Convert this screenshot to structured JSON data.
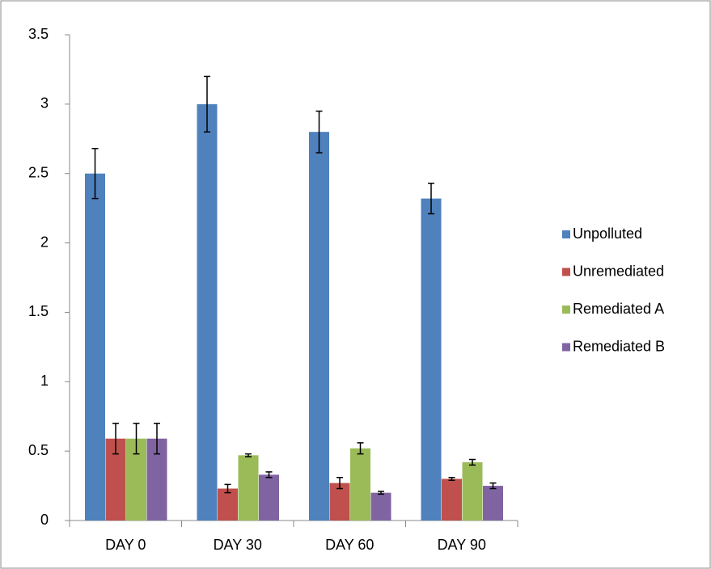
{
  "chart_data": {
    "type": "bar",
    "categories": [
      "DAY 0",
      "DAY 30",
      "DAY 60",
      "DAY 90"
    ],
    "series": [
      {
        "name": "Unpolluted",
        "color": "#4f81bd",
        "values": [
          2.5,
          3.0,
          2.8,
          2.32
        ],
        "errors": [
          0.18,
          0.2,
          0.15,
          0.11
        ]
      },
      {
        "name": "Unremediated",
        "color": "#c0504d",
        "values": [
          0.59,
          0.23,
          0.27,
          0.3
        ],
        "errors": [
          0.11,
          0.03,
          0.04,
          0.01
        ]
      },
      {
        "name": "Remediated A",
        "color": "#9bbb59",
        "values": [
          0.59,
          0.47,
          0.52,
          0.42
        ],
        "errors": [
          0.11,
          0.01,
          0.04,
          0.02
        ]
      },
      {
        "name": "Remediated B",
        "color": "#8064a2",
        "values": [
          0.59,
          0.33,
          0.2,
          0.25
        ],
        "errors": [
          0.11,
          0.02,
          0.01,
          0.02
        ]
      }
    ],
    "ylim": [
      0,
      3.5
    ],
    "yticks": [
      0,
      0.5,
      1,
      1.5,
      2,
      2.5,
      3,
      3.5
    ],
    "grid": false,
    "legend": "right"
  }
}
